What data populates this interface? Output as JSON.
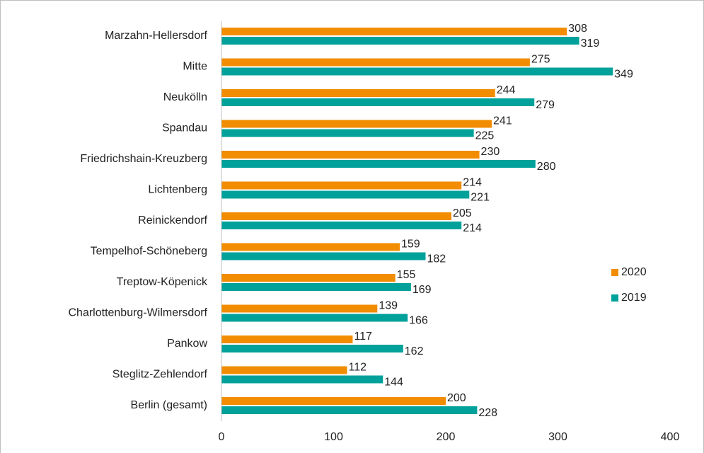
{
  "chart_data": {
    "type": "bar",
    "orientation": "horizontal",
    "categories": [
      "Marzahn-Hellersdorf",
      "Mitte",
      "Neukölln",
      "Spandau",
      "Friedrichshain-Kreuzberg",
      "Lichtenberg",
      "Reinickendorf",
      "Tempelhof-Schöneberg",
      "Treptow-Köpenick",
      "Charlottenburg-Wilmersdorf",
      "Pankow",
      "Steglitz-Zehlendorf",
      "Berlin (gesamt)"
    ],
    "series": [
      {
        "name": "2020",
        "color": "#f28c00",
        "values": [
          308,
          275,
          244,
          241,
          230,
          214,
          205,
          159,
          155,
          139,
          117,
          112,
          200
        ]
      },
      {
        "name": "2019",
        "color": "#00a19a",
        "values": [
          319,
          349,
          279,
          225,
          280,
          221,
          214,
          182,
          169,
          166,
          162,
          144,
          228
        ]
      }
    ],
    "xlim": [
      0,
      400
    ],
    "xticks": [
      0,
      100,
      200,
      300,
      400
    ],
    "grid": false,
    "legend": "right"
  }
}
